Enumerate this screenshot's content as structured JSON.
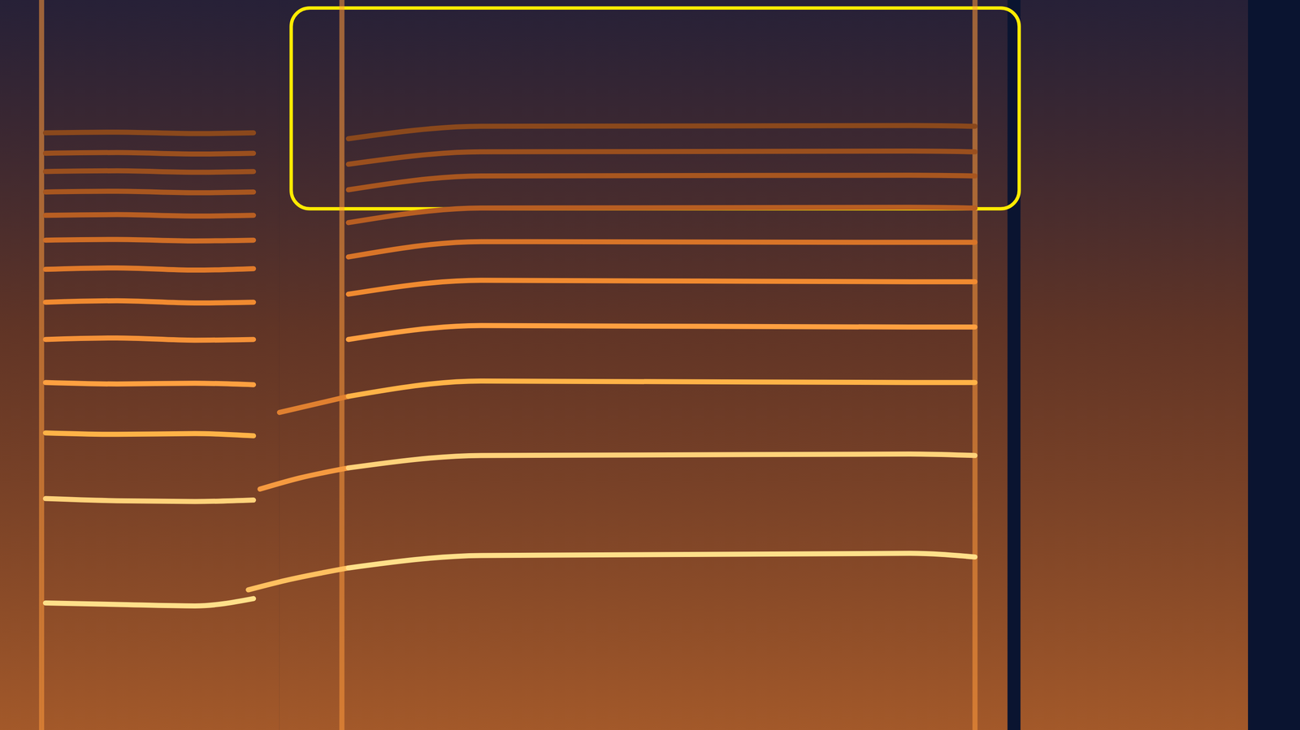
{
  "chart_data": {
    "type": "spectrogram",
    "tick_labels": false,
    "xlim": [
      0,
      100
    ],
    "ylim": [
      0,
      100
    ],
    "regions": [
      [
        0,
        3.2
      ],
      [
        3.2,
        21.5
      ],
      [
        21.5,
        77.5
      ],
      [
        78.5,
        96
      ]
    ],
    "onsets": [
      3.2,
      26.3,
      75
    ],
    "highlight": {
      "x": [
        22.4,
        78.4
      ],
      "y": [
        71.4,
        98.9
      ],
      "color": "#ffeb00"
    },
    "series": [
      {
        "x": [
          3.5,
          9,
          15,
          19.5
        ],
        "values": [
          17.4,
          17.2,
          17.0,
          18.0
        ],
        "color": "#ffe08a"
      },
      {
        "x": [
          3.5,
          9,
          15,
          19.5
        ],
        "values": [
          31.7,
          31.4,
          31.3,
          31.5
        ],
        "color": "#ffd27a"
      },
      {
        "x": [
          3.5,
          9,
          15,
          19.5
        ],
        "values": [
          40.7,
          40.5,
          40.6,
          40.3
        ],
        "color": "#ffb347"
      },
      {
        "x": [
          3.5,
          9,
          15,
          19.5
        ],
        "values": [
          47.6,
          47.4,
          47.5,
          47.3
        ],
        "color": "#ffa040"
      },
      {
        "x": [
          3.5,
          9,
          15,
          19.5
        ],
        "values": [
          53.5,
          53.7,
          53.4,
          53.5
        ],
        "color": "#f59238"
      },
      {
        "x": [
          3.5,
          9,
          15,
          19.5
        ],
        "values": [
          58.6,
          58.8,
          58.5,
          58.6
        ],
        "color": "#f08a30"
      },
      {
        "x": [
          3.5,
          9,
          15,
          19.5
        ],
        "values": [
          63.1,
          63.3,
          63.0,
          63.2
        ],
        "color": "#e07a2a"
      },
      {
        "x": [
          3.5,
          9,
          15,
          19.5
        ],
        "values": [
          67.1,
          67.2,
          67.0,
          67.1
        ],
        "color": "#d06e26"
      },
      {
        "x": [
          3.5,
          9,
          15,
          19.5
        ],
        "values": [
          70.5,
          70.6,
          70.4,
          70.5
        ],
        "color": "#b85e22"
      },
      {
        "x": [
          3.5,
          9,
          15,
          19.5
        ],
        "values": [
          73.7,
          73.8,
          73.6,
          73.7
        ],
        "color": "#a8561f"
      },
      {
        "x": [
          3.5,
          9,
          15,
          19.5
        ],
        "values": [
          76.5,
          76.6,
          76.4,
          76.5
        ],
        "color": "#9a4f1e"
      },
      {
        "x": [
          3.5,
          9,
          15,
          19.5
        ],
        "values": [
          79.0,
          79.1,
          78.9,
          79.0
        ],
        "color": "#9a4f1e"
      },
      {
        "x": [
          3.5,
          9,
          15,
          19.5
        ],
        "values": [
          81.8,
          81.9,
          81.7,
          81.8
        ],
        "color": "#8a481c"
      },
      {
        "x": [
          19.1,
          22,
          26.8
        ],
        "values": [
          19.2,
          20.5,
          22.2
        ],
        "color": "#ffc060"
      },
      {
        "x": [
          20,
          23,
          26.8
        ],
        "values": [
          33.0,
          34.5,
          35.9
        ],
        "color": "#f59a40"
      },
      {
        "x": [
          21.5,
          26.8
        ],
        "values": [
          43.5,
          45.7
        ],
        "color": "#e08030"
      },
      {
        "x": [
          26.8,
          37,
          70,
          75
        ],
        "values": [
          22.2,
          23.9,
          24.2,
          23.7
        ],
        "color": "#ffe08a"
      },
      {
        "x": [
          26.8,
          37,
          70,
          75
        ],
        "values": [
          35.9,
          37.6,
          37.8,
          37.6
        ],
        "color": "#ffd27a"
      },
      {
        "x": [
          26.8,
          37,
          70,
          75
        ],
        "values": [
          45.7,
          47.8,
          47.6,
          47.6
        ],
        "color": "#ffb347"
      },
      {
        "x": [
          26.8,
          37,
          70,
          75
        ],
        "values": [
          53.5,
          55.4,
          55.2,
          55.2
        ],
        "color": "#ffa040"
      },
      {
        "x": [
          26.8,
          37,
          70,
          75
        ],
        "values": [
          59.7,
          61.6,
          61.4,
          61.4
        ],
        "color": "#f08a30"
      },
      {
        "x": [
          26.8,
          37,
          70,
          75
        ],
        "values": [
          64.8,
          66.9,
          66.8,
          66.8
        ],
        "color": "#d87428"
      },
      {
        "x": [
          26.8,
          37,
          70,
          75
        ],
        "values": [
          69.5,
          71.5,
          71.6,
          71.5
        ],
        "color": "#b85e22"
      },
      {
        "x": [
          26.8,
          37,
          70,
          75
        ],
        "values": [
          74.0,
          75.9,
          76.0,
          75.9
        ],
        "color": "#a8561f"
      },
      {
        "x": [
          26.8,
          37,
          70,
          75
        ],
        "values": [
          77.5,
          79.2,
          79.3,
          79.2
        ],
        "color": "#9a4f1e"
      },
      {
        "x": [
          26.8,
          37,
          70,
          75
        ],
        "values": [
          81.0,
          82.7,
          82.8,
          82.7
        ],
        "color": "#8a481c"
      }
    ]
  }
}
